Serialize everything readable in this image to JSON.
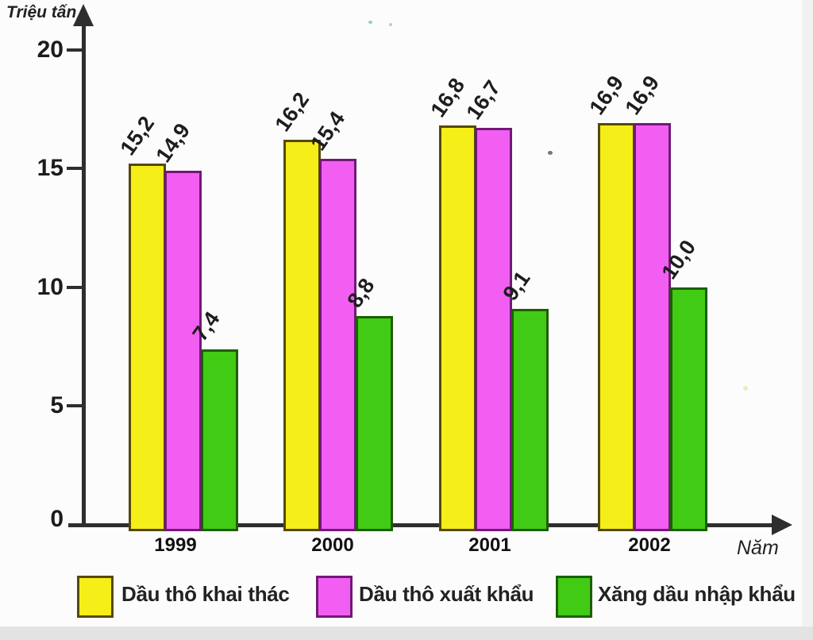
{
  "chart_data": {
    "type": "bar",
    "title": "",
    "ylabel": "Triệu tấn",
    "xlabel": "Năm",
    "categories": [
      "1999",
      "2000",
      "2001",
      "2002"
    ],
    "series": [
      {
        "key": "khai-thac",
        "name": "Dầu thô khai thác",
        "values": [
          15.2,
          16.2,
          16.8,
          16.9
        ],
        "labels": [
          "15,2",
          "16,2",
          "16,8",
          "16,9"
        ],
        "fill": "#f6ee18",
        "border": "#55490a"
      },
      {
        "key": "xuat-khau",
        "name": "Dầu thô xuất khẩu",
        "values": [
          14.9,
          15.4,
          16.7,
          16.9
        ],
        "labels": [
          "14,9",
          "15,4",
          "16,7",
          "16,9"
        ],
        "fill": "#f35ef2",
        "border": "#6f1a76"
      },
      {
        "key": "nhap-khau",
        "name": "Xăng dầu nhập khẩu",
        "values": [
          7.4,
          8.8,
          9.1,
          10.0
        ],
        "labels": [
          "7,4",
          "8,8",
          "9,1",
          "10,0"
        ],
        "fill": "#41cb15",
        "border": "#1e5e04"
      }
    ],
    "yticks": [
      0,
      5,
      10,
      15,
      20
    ],
    "ylim": [
      0,
      21.8
    ],
    "grid": false,
    "legend_position": "bottom",
    "axis_color": "#2e2e2e"
  }
}
